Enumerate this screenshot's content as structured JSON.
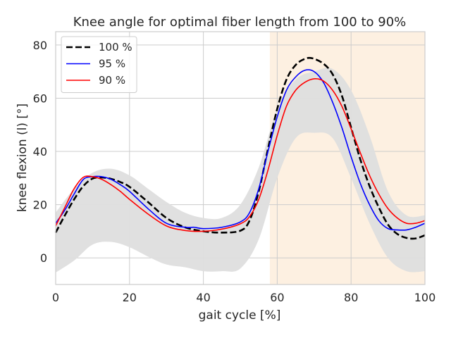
{
  "chart_data": {
    "type": "line",
    "title": "Knee angle for optimal fiber length from 100 to 90%",
    "xlabel": "gait cycle [%]",
    "ylabel": "knee flexion (l) [°]",
    "xlim": [
      0,
      100
    ],
    "ylim": [
      -10,
      85
    ],
    "xticks": [
      0,
      20,
      40,
      60,
      80,
      100
    ],
    "yticks": [
      0,
      20,
      40,
      60,
      80
    ],
    "xtick_labels": [
      "0",
      "20",
      "40",
      "60",
      "80",
      "100"
    ],
    "ytick_labels": [
      "0",
      "20",
      "40",
      "60",
      "80"
    ],
    "grid": true,
    "legend_position": "top-left",
    "shaded_region": {
      "x_start": 58,
      "x_end": 100,
      "color": "#fdf0e1"
    },
    "band": {
      "color": "#dedede",
      "x": [
        0,
        5,
        10,
        15,
        20,
        25,
        30,
        35,
        40,
        45,
        50,
        55,
        60,
        65,
        70,
        75,
        80,
        85,
        90,
        95,
        100
      ],
      "upper": [
        17,
        26,
        32,
        33.5,
        31,
        26,
        21,
        17,
        15,
        15,
        20,
        34,
        56,
        67,
        70,
        71,
        63,
        46,
        25,
        16,
        16
      ],
      "lower": [
        -5.5,
        -1,
        5,
        6,
        4,
        0.5,
        -2.5,
        -3.5,
        -5,
        -5,
        -4,
        7,
        30,
        45,
        47,
        45,
        30,
        13,
        0,
        -5,
        -5
      ]
    },
    "series": [
      {
        "name": "100 %",
        "color": "#000000",
        "style": "dashed",
        "x": [
          0,
          2.5,
          5,
          7.5,
          10,
          12.5,
          15,
          17.5,
          20,
          25,
          30,
          35,
          40,
          45,
          50,
          52.5,
          55,
          57.5,
          60,
          62.5,
          65,
          67.5,
          69.5,
          72.5,
          75,
          77.5,
          80,
          82.5,
          85,
          87.5,
          90,
          92.5,
          95,
          97.5,
          100
        ],
        "values": [
          9.5,
          16,
          22,
          27,
          29.8,
          30.2,
          29.7,
          28.5,
          26.7,
          21,
          15,
          11.5,
          10,
          9.5,
          10.2,
          14,
          25,
          41,
          56,
          67,
          72.5,
          74.8,
          75,
          73,
          69,
          61,
          49,
          37,
          27,
          19,
          12.5,
          9,
          7.5,
          7.3,
          8.5
        ]
      },
      {
        "name": "95 %",
        "color": "#0000ff",
        "style": "solid",
        "x": [
          0,
          2.5,
          5,
          7.5,
          10,
          12.5,
          15,
          17.5,
          20,
          25,
          30,
          35,
          37.5,
          40,
          45,
          50,
          52.5,
          55,
          57.5,
          60,
          62.5,
          65,
          67.5,
          70,
          72.5,
          75,
          77.5,
          80,
          82.5,
          85,
          87.5,
          90,
          92.5,
          95,
          97.5,
          100
        ],
        "values": [
          13,
          18,
          24,
          29.5,
          30.5,
          30.5,
          29.5,
          27.5,
          25,
          18.5,
          13,
          11.5,
          11.5,
          11,
          11.5,
          13.5,
          17,
          26,
          40,
          53,
          63,
          68,
          70.5,
          70,
          66,
          58.5,
          49,
          38,
          28,
          20,
          14,
          11,
          10.5,
          10.5,
          11.5,
          13
        ]
      },
      {
        "name": "90 %",
        "color": "#ff0000",
        "style": "solid",
        "x": [
          0,
          2.5,
          5,
          7.5,
          10,
          12.5,
          15,
          17.5,
          20,
          25,
          30,
          35,
          40,
          45,
          50,
          52.5,
          55,
          57.5,
          60,
          62.5,
          65,
          67.5,
          70,
          72.5,
          75,
          77.5,
          80,
          82.5,
          85,
          87.5,
          90,
          92.5,
          95,
          97.5,
          100
        ],
        "values": [
          12,
          19,
          26,
          30.3,
          30.5,
          29.5,
          27.5,
          25,
          22,
          16.5,
          12,
          10.3,
          10,
          10.8,
          12.8,
          15.5,
          22,
          33,
          46,
          57,
          63,
          66,
          67.3,
          66.5,
          63,
          57,
          48.5,
          39.5,
          31,
          24,
          18.5,
          15,
          13,
          13,
          14
        ]
      }
    ]
  }
}
